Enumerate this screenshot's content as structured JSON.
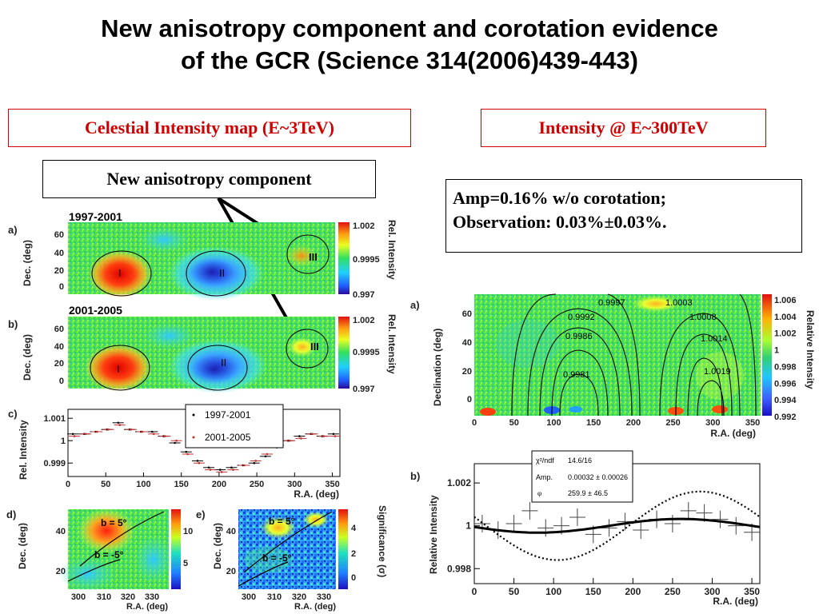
{
  "title": {
    "line1": "New anisotropy component and corotation evidence",
    "line2": "of the GCR (Science 314(2006)439-443)"
  },
  "labels": {
    "left_box": "Celestial Intensity map (E~3TeV)",
    "right_box": "Intensity @ E~300TeV",
    "new_component": "New anisotropy component",
    "amp_line1": "Amp=0.16% w/o corotation;",
    "amp_line2": "Observation: 0.03%±0.03%."
  },
  "colors": {
    "accent_red": "#d00000",
    "frame": "#000000",
    "fit_line": "#000000"
  },
  "chart_data": [
    {
      "panel": "a)",
      "type": "heatmap",
      "title": "1997-2001",
      "xlabel": "",
      "ylabel": "Dec. (deg)",
      "yticks": [
        "0",
        "20",
        "40",
        "60"
      ],
      "colorbar": {
        "label": "Rel. Intensity",
        "ticks": [
          "1.002",
          "0.9995",
          "0.997"
        ]
      },
      "regions": [
        "I",
        "II",
        "III"
      ]
    },
    {
      "panel": "b)",
      "type": "heatmap",
      "title": "2001-2005",
      "xlabel": "",
      "ylabel": "Dec. (deg)",
      "yticks": [
        "0",
        "20",
        "40",
        "60"
      ],
      "colorbar": {
        "label": "Rel. Intensity",
        "ticks": [
          "1.002",
          "0.9995",
          "0.997"
        ]
      },
      "regions": [
        "I",
        "II",
        "III"
      ]
    },
    {
      "panel": "c)",
      "type": "scatter",
      "xlabel": "R.A. (deg)",
      "ylabel": "Rel. Intensity",
      "xlim": [
        0,
        360
      ],
      "ylim": [
        0.9984,
        1.0014
      ],
      "xticks": [
        "0",
        "50",
        "100",
        "150",
        "200",
        "250",
        "300",
        "350"
      ],
      "yticks": [
        "0.999",
        "1",
        "1.001"
      ],
      "x": [
        7.5,
        22.5,
        37.5,
        52.5,
        67.5,
        82.5,
        97.5,
        112.5,
        127.5,
        142.5,
        157.5,
        172.5,
        187.5,
        202.5,
        217.5,
        232.5,
        247.5,
        262.5,
        277.5,
        292.5,
        307.5,
        322.5,
        337.5,
        352.5
      ],
      "series": [
        {
          "name": "1997-2001",
          "values": [
            1.0003,
            1.0003,
            1.0004,
            1.0005,
            1.0008,
            1.0005,
            1.0004,
            1.0004,
            1.0002,
            0.9999,
            0.9995,
            0.9991,
            0.9988,
            0.9987,
            0.9988,
            0.9989,
            0.999,
            0.9993,
            0.9997,
            1.0,
            1.0002,
            1.0003,
            1.0002,
            1.0003
          ]
        },
        {
          "name": "2001-2005",
          "values": [
            1.0002,
            1.0003,
            1.0004,
            1.0005,
            1.0007,
            1.0005,
            1.0004,
            1.0003,
            1.0002,
            1.0,
            0.9994,
            0.999,
            0.9987,
            0.9986,
            0.9987,
            0.9989,
            0.9991,
            0.9994,
            0.9998,
            1.0,
            1.0001,
            1.0003,
            1.0002,
            1.0002
          ]
        }
      ]
    },
    {
      "panel": "d)",
      "type": "heatmap",
      "xlabel": "R.A. (deg)",
      "ylabel": "Dec. (deg)",
      "xticks": [
        "300",
        "310",
        "320",
        "330"
      ],
      "yticks": [
        "20",
        "40"
      ],
      "colorbar": {
        "label": "",
        "ticks": [
          "10",
          "5"
        ]
      },
      "annotations": [
        "b = 5°",
        "b = -5°"
      ]
    },
    {
      "panel": "e)",
      "type": "heatmap",
      "xlabel": "R.A. (deg)",
      "ylabel": "Dec. (deg)",
      "xticks": [
        "300",
        "310",
        "320",
        "330"
      ],
      "yticks": [
        "20",
        "40"
      ],
      "colorbar": {
        "label": "Significance (σ)",
        "ticks": [
          "4",
          "2",
          "0"
        ]
      },
      "annotations": [
        "b = 5°",
        "b = -5°"
      ]
    },
    {
      "panel": "a)",
      "type": "heatmap",
      "xlabel": "R.A. (deg)",
      "ylabel": "Declination (deg)",
      "xticks": [
        "0",
        "50",
        "100",
        "150",
        "200",
        "250",
        "300",
        "350"
      ],
      "yticks": [
        "0",
        "20",
        "40",
        "60"
      ],
      "colorbar": {
        "label": "Relative Intensity",
        "ticks": [
          "1.006",
          "1.004",
          "1.002",
          "1",
          "0.998",
          "0.996",
          "0.994",
          "0.992"
        ]
      },
      "contour_labels": [
        "0.9997",
        "1.0003",
        "0.9992",
        "1.0008",
        "0.9986",
        "1.0014",
        "0.9981",
        "1.0019"
      ]
    },
    {
      "panel": "b)",
      "type": "line",
      "xlabel": "R.A. (deg)",
      "ylabel": "Relative Intensity",
      "xlim": [
        0,
        360
      ],
      "ylim": [
        0.9973,
        1.0029
      ],
      "xticks": [
        "0",
        "50",
        "100",
        "150",
        "200",
        "250",
        "300",
        "350"
      ],
      "yticks": [
        "0.998",
        "1",
        "1.002"
      ],
      "fit": {
        "chi2_label": "χ²/ndf",
        "chi2": "14.6/16",
        "amp_label": "Amp.",
        "amp": "0.00032 ± 0.00026",
        "phase_label": "φ",
        "phase": "259.9 ± 46.5"
      },
      "x": [
        10,
        30,
        50,
        70,
        90,
        110,
        130,
        150,
        170,
        190,
        210,
        230,
        250,
        270,
        290,
        310,
        330,
        350
      ],
      "series": [
        {
          "values": [
            1.0001,
            0.9998,
            1.0001,
            1.0007,
            0.9999,
            1.0,
            1.0004,
            0.9996,
            0.9999,
            1.0002,
            0.9998,
            1.0003,
            1.0001,
            1.0007,
            1.0006,
            1.0003,
            1.0,
            0.9997
          ]
        }
      ],
      "fit_curve": {
        "amplitude": 0.00032,
        "phase": 259.9
      },
      "no_corotation_curve": {
        "amplitude": 0.0016,
        "phase": 285
      }
    }
  ]
}
